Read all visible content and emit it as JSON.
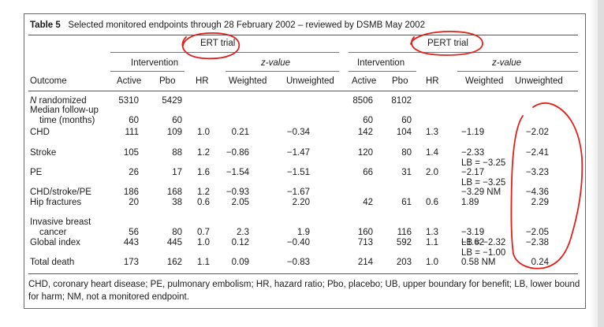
{
  "table": {
    "label": "Table 5",
    "caption": "Selected monitored endpoints through 28 February 2002 – reviewed by DSMB May 2002",
    "group_headers": [
      "ERT trial",
      "PERT trial"
    ],
    "sub_headers": {
      "intervention": "Intervention",
      "zvalue": "z-value"
    },
    "columns": [
      "Outcome",
      "Active",
      "Pbo",
      "HR",
      "Weighted",
      "Unweighted",
      "Active",
      "Pbo",
      "HR",
      "Weighted",
      "Unweighted"
    ],
    "rows": [
      {
        "outcome": "N randomized",
        "ert": [
          "5310",
          "5429",
          "",
          "",
          ""
        ],
        "pert": [
          "8506",
          "8102",
          "",
          "",
          ""
        ]
      },
      {
        "outcome": "Median follow-up",
        "outcome2": "time (months)",
        "ert": [
          "60",
          "60",
          "",
          "",
          ""
        ],
        "pert": [
          "60",
          "60",
          "",
          "",
          ""
        ]
      },
      {
        "outcome": "CHD",
        "ert": [
          "111",
          "109",
          "1.0",
          "0.21",
          "−0.34"
        ],
        "pert": [
          "142",
          "104",
          "1.3",
          "−1.19",
          "−2.02"
        ]
      },
      {
        "outcome": "Stroke",
        "ert": [
          "105",
          "88",
          "1.2",
          "−0.86",
          "−1.47"
        ],
        "pert": [
          "120",
          "80",
          "1.4",
          "−2.33",
          "−2.41"
        ],
        "pert_note": "LB = −3.25"
      },
      {
        "outcome": "PE",
        "ert": [
          "26",
          "17",
          "1.6",
          "−1.54",
          "−1.51"
        ],
        "pert": [
          "66",
          "31",
          "2.0",
          "−2.17",
          "−3.23"
        ],
        "pert_note": "LB = −3.25"
      },
      {
        "outcome": "CHD/stroke/PE",
        "ert": [
          "186",
          "168",
          "1.2",
          "−0.93",
          "−1.67"
        ],
        "pert": [
          "",
          "",
          "",
          "−3.29 NM",
          "−4.36"
        ]
      },
      {
        "outcome": "Hip fractures",
        "ert": [
          "20",
          "38",
          "0.6",
          "2.05",
          "2.20"
        ],
        "pert": [
          "42",
          "61",
          "0.6",
          "1.89",
          "2.29"
        ]
      },
      {
        "outcome": "Invasive breast",
        "outcome2": "cancer",
        "ert": [
          "56",
          "80",
          "0.7",
          "2.3",
          "1.9"
        ],
        "pert": [
          "160",
          "116",
          "1.3",
          "−3.19",
          "−2.05"
        ],
        "pert_note": "LB = −2.32"
      },
      {
        "outcome": "Global index",
        "ert": [
          "443",
          "445",
          "1.0",
          "0.12",
          "−0.40"
        ],
        "pert": [
          "713",
          "592",
          "1.1",
          "−1.62",
          "−2.38"
        ],
        "pert_note": "LB = −1.00"
      },
      {
        "outcome": "Total death",
        "ert": [
          "173",
          "162",
          "1.1",
          "0.09",
          "−0.83"
        ],
        "pert": [
          "214",
          "203",
          "1.0",
          "0.58 NM",
          "0.24"
        ]
      }
    ],
    "footnote": "CHD, coronary heart disease; PE, pulmonary embolism; HR, hazard ratio; Pbo, placebo; UB, upper boundary for benefit; LB, lower bound for harm; NM, not a monitored endpoint."
  },
  "annotation": {
    "color": "#e0201b"
  }
}
